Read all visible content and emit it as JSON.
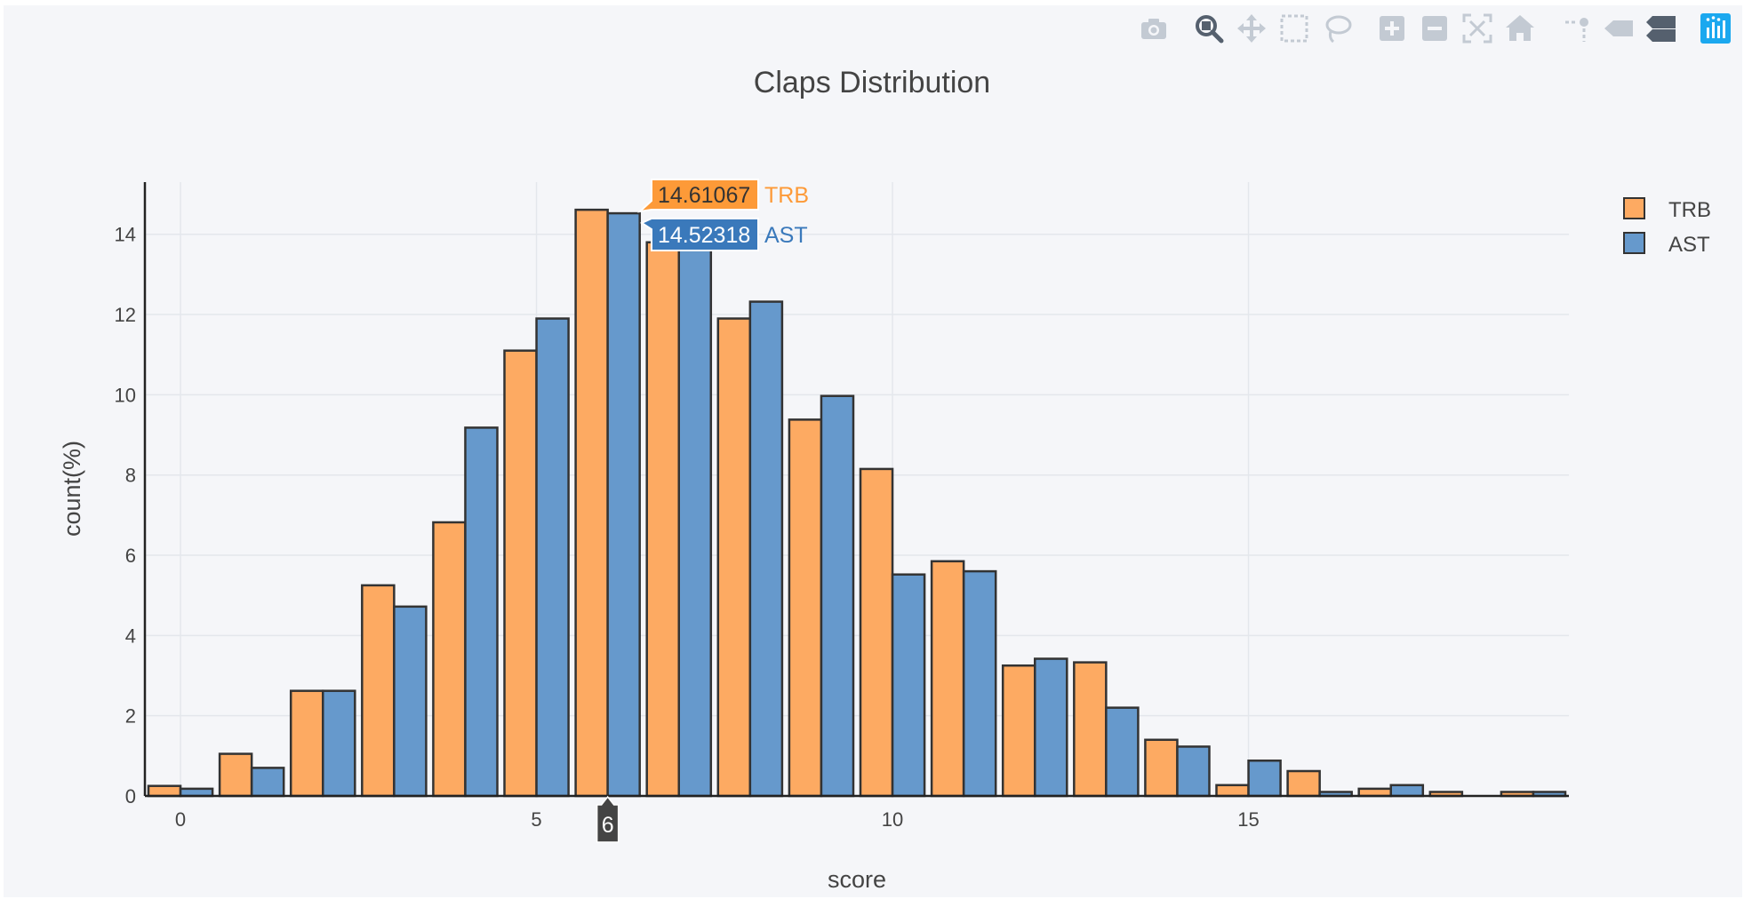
{
  "chart_data": {
    "type": "bar",
    "title": "Claps Distribution",
    "xlabel": "score",
    "ylabel": "count(%)",
    "xlim": [
      -0.5,
      19.5
    ],
    "ylim": [
      0,
      15.3
    ],
    "x_ticks": [
      0,
      5,
      10,
      15
    ],
    "y_ticks": [
      0,
      2,
      4,
      6,
      8,
      10,
      12,
      14
    ],
    "grid": true,
    "legend_position": "top-right",
    "categories": [
      0,
      1,
      2,
      3,
      4,
      5,
      6,
      7,
      8,
      9,
      10,
      11,
      12,
      13,
      14,
      15,
      16,
      17,
      18,
      19
    ],
    "series": [
      {
        "name": "TRB",
        "color": "#fdaa62",
        "values": [
          0.25,
          1.05,
          2.62,
          5.25,
          6.82,
          11.1,
          14.61067,
          13.8,
          11.9,
          9.38,
          8.15,
          5.85,
          3.25,
          3.33,
          1.4,
          0.27,
          0.62,
          0.18,
          0.1,
          0.1
        ]
      },
      {
        "name": "AST",
        "color": "#6699cc",
        "values": [
          0.18,
          0.7,
          2.62,
          4.72,
          9.18,
          11.9,
          14.52318,
          13.6,
          12.32,
          9.97,
          5.52,
          5.6,
          3.42,
          2.2,
          1.23,
          0.88,
          0.1,
          0.27,
          0.0,
          0.1
        ]
      }
    ],
    "hover": {
      "x_label": "6",
      "entries": [
        {
          "value": "14.61067",
          "name": "TRB",
          "color": "#fd9a38"
        },
        {
          "value": "14.52318",
          "name": "AST",
          "color": "#3a79bb"
        }
      ]
    }
  },
  "modebar": {
    "buttons": [
      {
        "name": "camera-icon",
        "group": 0
      },
      {
        "name": "zoom-icon",
        "group": 1
      },
      {
        "name": "pan-icon",
        "group": 1
      },
      {
        "name": "box-select-icon",
        "group": 1
      },
      {
        "name": "lasso-select-icon",
        "group": 1
      },
      {
        "name": "zoom-in-icon",
        "group": 2
      },
      {
        "name": "zoom-out-icon",
        "group": 2
      },
      {
        "name": "autoscale-icon",
        "group": 2
      },
      {
        "name": "reset-axes-icon",
        "group": 2
      },
      {
        "name": "spike-lines-icon",
        "group": 3
      },
      {
        "name": "hover-closest-icon",
        "group": 3
      },
      {
        "name": "hover-compare-icon",
        "group": 3
      },
      {
        "name": "plotly-logo-icon",
        "group": 4
      }
    ],
    "active": "zoom-icon",
    "icon_color": "#c3cad3",
    "active_color": "#55606e",
    "compare_color": "#55606e",
    "logo_color": "#1ba8ef"
  }
}
